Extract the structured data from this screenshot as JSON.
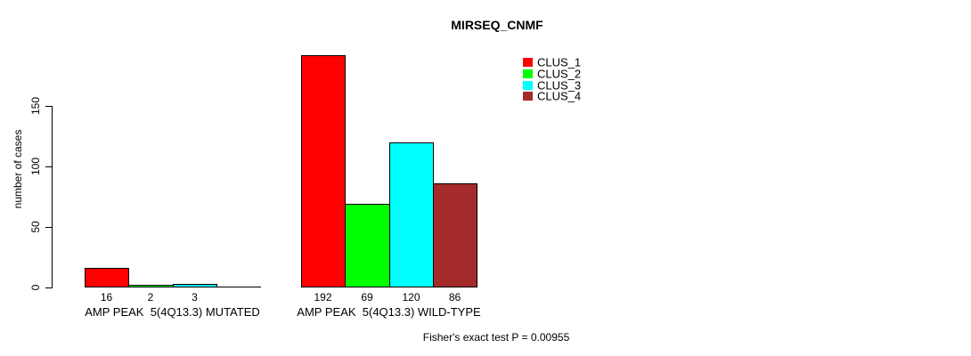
{
  "chart_data": {
    "type": "bar",
    "title": "MIRSEQ_CNMF",
    "ylabel": "number of cases",
    "xlabel": "",
    "ylim": [
      0,
      195
    ],
    "yticks": [
      0,
      50,
      100,
      150
    ],
    "grid": false,
    "legend_position": "top-right",
    "categories": [
      "AMP PEAK  5(4Q13.3) MUTATED",
      "AMP PEAK  5(4Q13.3) WILD-TYPE"
    ],
    "series": [
      {
        "name": "CLUS_1",
        "color": "#FF0000",
        "values": [
          16,
          192
        ]
      },
      {
        "name": "CLUS_2",
        "color": "#00FF00",
        "values": [
          2,
          69
        ]
      },
      {
        "name": "CLUS_3",
        "color": "#00FFFF",
        "values": [
          3,
          120
        ]
      },
      {
        "name": "CLUS_4",
        "color": "#A52A2A",
        "values": [
          0,
          86
        ]
      }
    ],
    "bar_value_labels": {
      "show": true,
      "hide_zero": true
    },
    "annotation": "Fisher's exact test P = 0.00955",
    "colors": {
      "background": "#FFFFFF",
      "axis": "#000000",
      "text": "#000000"
    }
  }
}
